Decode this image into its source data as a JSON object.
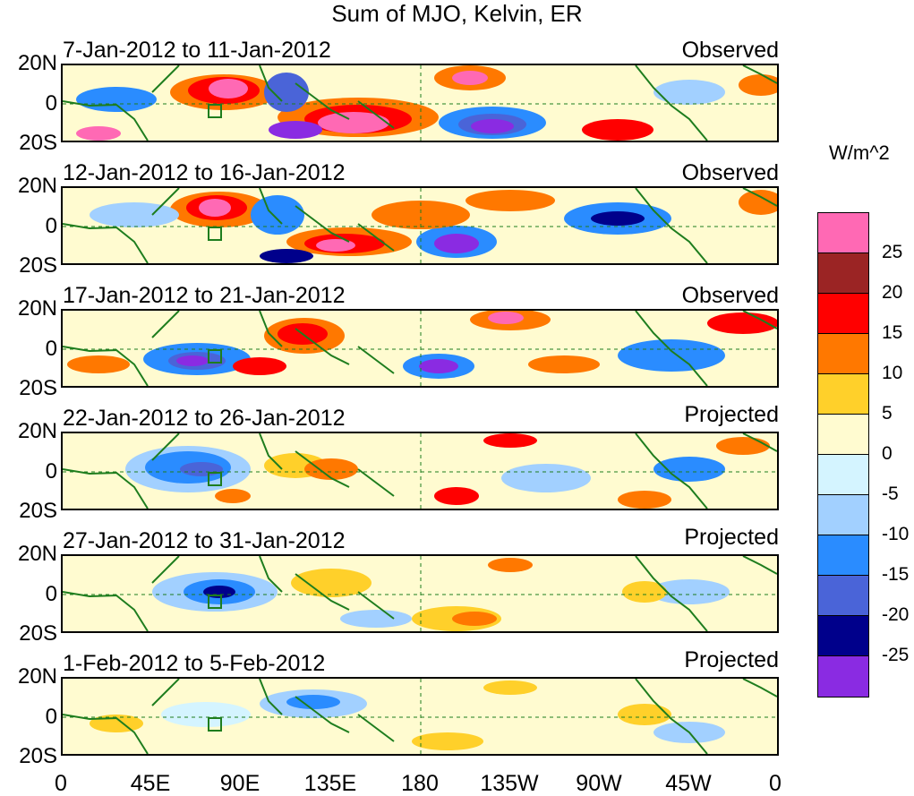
{
  "title": "Sum of MJO, Kelvin, ER",
  "panels": [
    {
      "period": "7-Jan-2012 to 11-Jan-2012",
      "status": "Observed"
    },
    {
      "period": "12-Jan-2012 to 16-Jan-2012",
      "status": "Observed"
    },
    {
      "period": "17-Jan-2012 to 21-Jan-2012",
      "status": "Observed"
    },
    {
      "period": "22-Jan-2012 to 26-Jan-2012",
      "status": "Projected"
    },
    {
      "period": "27-Jan-2012 to 31-Jan-2012",
      "status": "Projected"
    },
    {
      "period": "1-Feb-2012 to 5-Feb-2012",
      "status": "Projected"
    }
  ],
  "y_ticks": [
    "20N",
    "0",
    "20S"
  ],
  "x_ticks": [
    "0",
    "45E",
    "90E",
    "135E",
    "180",
    "135W",
    "90W",
    "45W",
    "0"
  ],
  "colorbar": {
    "unit": "W/m^2",
    "labels": [
      "25",
      "20",
      "15",
      "10",
      "5",
      "0",
      "-5",
      "-10",
      "-15",
      "-20",
      "-25"
    ],
    "colors": [
      "#ff69b4",
      "#9b2424",
      "#ff0000",
      "#ff7800",
      "#ffd02a",
      "#fffbd0",
      "#d4f4ff",
      "#a2d0ff",
      "#2a8cff",
      "#4a64d8",
      "#00008b",
      "#8a2be2"
    ]
  },
  "colors": {
    "coastline": "#1e7d1e",
    "guide": "#1e7d1e"
  }
}
